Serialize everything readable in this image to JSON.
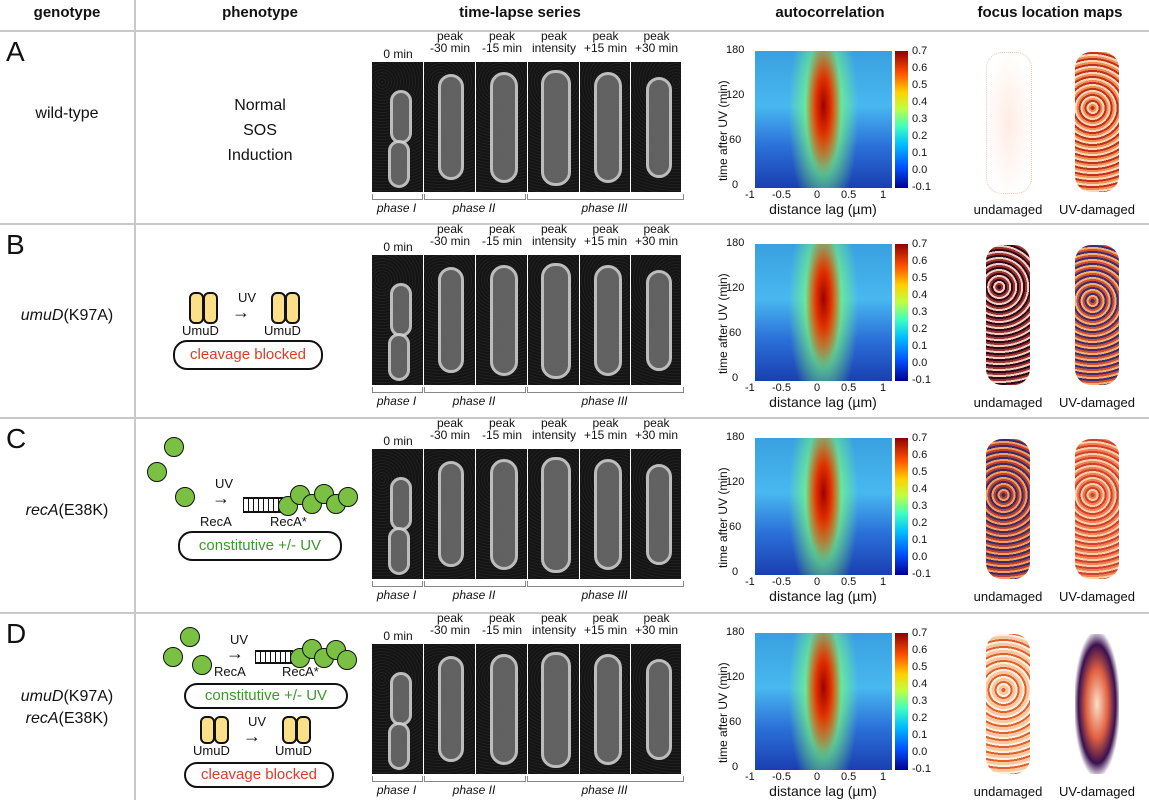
{
  "headers": {
    "genotype": "genotype",
    "phenotype": "phenotype",
    "timelapse": "time-lapse series",
    "autocorrelation": "autocorrelation",
    "focus": "focus location maps"
  },
  "rows": [
    {
      "letter": "A",
      "geno1": "wild-type",
      "geno1_italic": "",
      "geno1_rest": "",
      "geno2_italic": "",
      "geno2_rest": "",
      "phenotype_lines": [
        "Normal",
        "SOS",
        "Induction"
      ]
    },
    {
      "letter": "B",
      "geno1": "",
      "geno1_italic": "umuD",
      "geno1_rest": "(K97A)",
      "geno2_italic": "",
      "geno2_rest": "",
      "umud_left": "UmuD",
      "umud_right": "UmuD",
      "uv": "UV",
      "pill": "cleavage blocked"
    },
    {
      "letter": "C",
      "geno1": "",
      "geno1_italic": "recA",
      "geno1_rest": "(E38K)",
      "geno2_italic": "",
      "geno2_rest": "",
      "reca_left": "RecA",
      "reca_right": "RecA*",
      "uv": "UV",
      "pill": "constitutive +/- UV"
    },
    {
      "letter": "D",
      "geno1": "",
      "geno1_italic": "umuD",
      "geno1_rest": "(K97A)",
      "geno2_italic": "recA",
      "geno2_rest": "(E38K)",
      "reca_left": "RecA",
      "reca_right": "RecA*",
      "uv": "UV",
      "pill": "constitutive +/- UV",
      "umud_left": "UmuD",
      "umud_right": "UmuD",
      "uv2": "UV",
      "pill2": "cleavage blocked"
    }
  ],
  "timelapse": {
    "frames": [
      "0 min",
      "peak\n-30 min",
      "peak\n-15 min",
      "peak\nintensity",
      "peak\n+15 min",
      "peak\n+30 min"
    ],
    "phases": [
      "phase I",
      "phase II",
      "phase III"
    ]
  },
  "autocorr": {
    "ylabel": "time after UV (min)",
    "xlabel": "distance lag (µm)",
    "yticks": [
      "180",
      "120",
      "60",
      "0"
    ],
    "xticks": [
      "-1",
      "-0.5",
      "0",
      "0.5",
      "1"
    ],
    "cbticks": [
      "0.7",
      "0.6",
      "0.5",
      "0.4",
      "0.3",
      "0.2",
      "0.1",
      "0.0",
      "-0.1"
    ]
  },
  "focus": {
    "left": "undamaged",
    "right": "UV-damaged"
  },
  "colors": {
    "red_text": "#e03a2a",
    "green_text": "#3a9a2a",
    "umud_fill": "#fbe089",
    "reca_fill": "#7ac143"
  }
}
